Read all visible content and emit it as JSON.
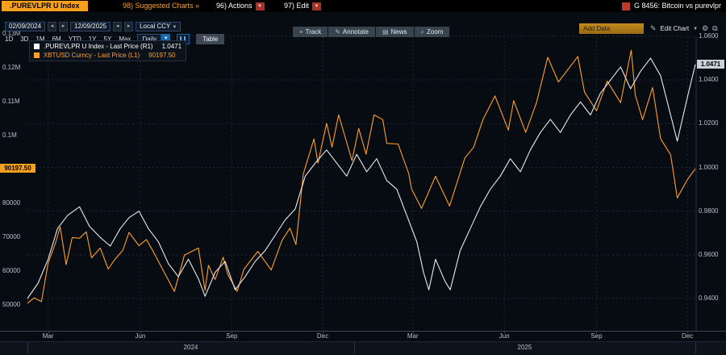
{
  "title_bar": {
    "ticker_tag": ".PUREVLPR U Index",
    "suggested_charts": "98) Suggested Charts »",
    "actions_label": "96) Actions",
    "edit_label": "97) Edit",
    "window_tag": "G 8456: Bitcoin vs purevlpr"
  },
  "toolbar": {
    "date_start": "02/09/2024",
    "date_end": "12/09/2025",
    "currency": "Local CCY",
    "periods": [
      "1D",
      "3D",
      "1M",
      "6M",
      "YTD",
      "1Y",
      "5Y",
      "Max"
    ],
    "frequency": "Daily",
    "table_label": "Table",
    "chart_tools": [
      {
        "label": "Track",
        "icon": "crosshair-icon",
        "glyph": "⌖"
      },
      {
        "label": "Annotate",
        "icon": "pencil-icon",
        "glyph": "✎"
      },
      {
        "label": "News",
        "icon": "news-icon",
        "glyph": "▤"
      },
      {
        "label": "Zoom",
        "icon": "zoom-icon",
        "glyph": "⌕"
      }
    ],
    "add_data_label": "Add Data",
    "edit_chart_label": "Edit Chart"
  },
  "icons": {
    "dropdown_caret": "▼",
    "left_arrow": "◂",
    "right_arrow": "▸",
    "pencil": "✎",
    "gear": "⚙",
    "expand": "⧉"
  },
  "legend": {
    "items": [
      {
        "id": "purevlpr",
        "label": ".PUREVLPR U Index - Last Price (R1)",
        "value": "1.0471",
        "color": "#ffffff"
      },
      {
        "id": "xbtusd",
        "label": "XBTUSD Curncy - Last Price (L1)",
        "value": "90197.50",
        "color": "#ffa028"
      }
    ]
  },
  "colors": {
    "amber": "#f7a01d",
    "white_series": "#e8ebee",
    "orange_series": "#ffa028",
    "grid": "#1d2733",
    "axis_text": "#b6c0ca"
  },
  "chart_data": {
    "type": "line",
    "title": "Bitcoin vs purevlpr",
    "x_axis": {
      "start": "02/09/2024",
      "end": "12/09/2025",
      "month_ticks": [
        {
          "t": 0.031,
          "label": "Mar"
        },
        {
          "t": 0.169,
          "label": "Jun"
        },
        {
          "t": 0.306,
          "label": "Sep"
        },
        {
          "t": 0.442,
          "label": "Dec"
        },
        {
          "t": 0.577,
          "label": "Mar"
        },
        {
          "t": 0.714,
          "label": "Jun"
        },
        {
          "t": 0.852,
          "label": "Sep"
        },
        {
          "t": 0.988,
          "label": "Dec"
        }
      ],
      "years": [
        {
          "label": "2024",
          "t_start": 0,
          "t_end": 0.489
        },
        {
          "label": "2025",
          "t_start": 0.489,
          "t_end": 1
        }
      ]
    },
    "left_axis": {
      "min": 50000,
      "max": 130000,
      "last_price": 90197.5,
      "last_label": "90197.50",
      "badge_color": "#f7a01d",
      "ticks": [
        {
          "v": 130000,
          "label": "0.13M"
        },
        {
          "v": 120000,
          "label": "0.12M"
        },
        {
          "v": 110000,
          "label": "0.11M"
        },
        {
          "v": 100000,
          "label": "0.1M"
        },
        {
          "v": 80000,
          "label": "80000"
        },
        {
          "v": 70000,
          "label": "70000"
        },
        {
          "v": 60000,
          "label": "60000"
        },
        {
          "v": 50000,
          "label": "50000"
        }
      ]
    },
    "right_axis": {
      "min": 0.94,
      "max": 1.06,
      "last_price": 1.0471,
      "last_label": "1.0471",
      "badge_color": "#ccd2d8",
      "ticks": [
        {
          "v": 1.06,
          "label": "1.0600"
        },
        {
          "v": 1.04,
          "label": "1.0400"
        },
        {
          "v": 1.02,
          "label": "1.0200"
        },
        {
          "v": 1.0,
          "label": "1.0000"
        },
        {
          "v": 0.98,
          "label": "0.9800"
        },
        {
          "v": 0.96,
          "label": "0.9600"
        },
        {
          "v": 0.94,
          "label": "0.9400"
        }
      ]
    },
    "series": [
      {
        "id": "xbtusd",
        "name": "XBTUSD Curncy",
        "axis": "left",
        "color": "#ffa028",
        "points": [
          [
            0,
            50500
          ],
          [
            0.01,
            52100
          ],
          [
            0.021,
            51000
          ],
          [
            0.031,
            62400
          ],
          [
            0.042,
            68300
          ],
          [
            0.049,
            73000
          ],
          [
            0.058,
            61900
          ],
          [
            0.067,
            69900
          ],
          [
            0.078,
            69700
          ],
          [
            0.088,
            71600
          ],
          [
            0.096,
            63900
          ],
          [
            0.109,
            66800
          ],
          [
            0.121,
            60600
          ],
          [
            0.13,
            63200
          ],
          [
            0.143,
            66200
          ],
          [
            0.152,
            71400
          ],
          [
            0.167,
            67500
          ],
          [
            0.178,
            69300
          ],
          [
            0.188,
            65900
          ],
          [
            0.203,
            60300
          ],
          [
            0.22,
            54000
          ],
          [
            0.235,
            64700
          ],
          [
            0.256,
            66800
          ],
          [
            0.266,
            54300
          ],
          [
            0.271,
            61700
          ],
          [
            0.281,
            57500
          ],
          [
            0.293,
            64100
          ],
          [
            0.3,
            59000
          ],
          [
            0.314,
            54000
          ],
          [
            0.324,
            60500
          ],
          [
            0.345,
            65800
          ],
          [
            0.365,
            60300
          ],
          [
            0.381,
            69000
          ],
          [
            0.393,
            72700
          ],
          [
            0.402,
            67800
          ],
          [
            0.413,
            88700
          ],
          [
            0.429,
            99000
          ],
          [
            0.435,
            91900
          ],
          [
            0.448,
            103600
          ],
          [
            0.456,
            96600
          ],
          [
            0.466,
            106100
          ],
          [
            0.486,
            92600
          ],
          [
            0.496,
            102100
          ],
          [
            0.507,
            94500
          ],
          [
            0.519,
            106100
          ],
          [
            0.532,
            104700
          ],
          [
            0.538,
            97700
          ],
          [
            0.555,
            97500
          ],
          [
            0.571,
            88700
          ],
          [
            0.575,
            84300
          ],
          [
            0.59,
            78500
          ],
          [
            0.611,
            88000
          ],
          [
            0.632,
            79200
          ],
          [
            0.655,
            93400
          ],
          [
            0.668,
            96500
          ],
          [
            0.682,
            104700
          ],
          [
            0.7,
            111700
          ],
          [
            0.72,
            101600
          ],
          [
            0.728,
            110300
          ],
          [
            0.746,
            100900
          ],
          [
            0.762,
            109600
          ],
          [
            0.779,
            123100
          ],
          [
            0.795,
            115800
          ],
          [
            0.824,
            123300
          ],
          [
            0.834,
            112800
          ],
          [
            0.852,
            107300
          ],
          [
            0.868,
            116100
          ],
          [
            0.888,
            109700
          ],
          [
            0.904,
            125200
          ],
          [
            0.91,
            112000
          ],
          [
            0.921,
            104700
          ],
          [
            0.936,
            114200
          ],
          [
            0.948,
            99100
          ],
          [
            0.963,
            94300
          ],
          [
            0.973,
            81600
          ],
          [
            0.988,
            87000
          ],
          [
            1,
            90197.5
          ]
        ]
      },
      {
        "id": "purevlpr",
        "name": ".PUREVLPR U Index",
        "axis": "right",
        "color": "#e8ebee",
        "points": [
          [
            0,
            0.94
          ],
          [
            0.016,
            0.947
          ],
          [
            0.031,
            0.958
          ],
          [
            0.045,
            0.972
          ],
          [
            0.06,
            0.978
          ],
          [
            0.078,
            0.982
          ],
          [
            0.093,
            0.973
          ],
          [
            0.109,
            0.968
          ],
          [
            0.124,
            0.964
          ],
          [
            0.139,
            0.972
          ],
          [
            0.152,
            0.977
          ],
          [
            0.167,
            0.98
          ],
          [
            0.181,
            0.972
          ],
          [
            0.196,
            0.966
          ],
          [
            0.211,
            0.956
          ],
          [
            0.226,
            0.95
          ],
          [
            0.241,
            0.958
          ],
          [
            0.256,
            0.949
          ],
          [
            0.266,
            0.941
          ],
          [
            0.281,
            0.952
          ],
          [
            0.296,
            0.957
          ],
          [
            0.311,
            0.944
          ],
          [
            0.326,
            0.95
          ],
          [
            0.341,
            0.957
          ],
          [
            0.356,
            0.962
          ],
          [
            0.371,
            0.969
          ],
          [
            0.386,
            0.976
          ],
          [
            0.401,
            0.981
          ],
          [
            0.416,
            0.996
          ],
          [
            0.431,
            1.002
          ],
          [
            0.448,
            1.008
          ],
          [
            0.463,
            1.002
          ],
          [
            0.478,
            0.996
          ],
          [
            0.493,
            1.006
          ],
          [
            0.508,
            0.998
          ],
          [
            0.523,
            1.004
          ],
          [
            0.538,
            0.994
          ],
          [
            0.553,
            0.99
          ],
          [
            0.568,
            0.978
          ],
          [
            0.583,
            0.966
          ],
          [
            0.593,
            0.952
          ],
          [
            0.601,
            0.944
          ],
          [
            0.611,
            0.958
          ],
          [
            0.625,
            0.948
          ],
          [
            0.633,
            0.944
          ],
          [
            0.648,
            0.962
          ],
          [
            0.663,
            0.972
          ],
          [
            0.678,
            0.982
          ],
          [
            0.693,
            0.99
          ],
          [
            0.708,
            0.996
          ],
          [
            0.723,
            1.004
          ],
          [
            0.738,
            0.998
          ],
          [
            0.753,
            1.008
          ],
          [
            0.768,
            1.016
          ],
          [
            0.783,
            1.022
          ],
          [
            0.798,
            1.016
          ],
          [
            0.813,
            1.024
          ],
          [
            0.828,
            1.03
          ],
          [
            0.843,
            1.024
          ],
          [
            0.858,
            1.034
          ],
          [
            0.873,
            1.04
          ],
          [
            0.888,
            1.046
          ],
          [
            0.903,
            1.036
          ],
          [
            0.918,
            1.044
          ],
          [
            0.933,
            1.05
          ],
          [
            0.948,
            1.042
          ],
          [
            0.958,
            1.03
          ],
          [
            0.973,
            1.012
          ],
          [
            0.988,
            1.032
          ],
          [
            1,
            1.0471
          ]
        ]
      }
    ]
  }
}
